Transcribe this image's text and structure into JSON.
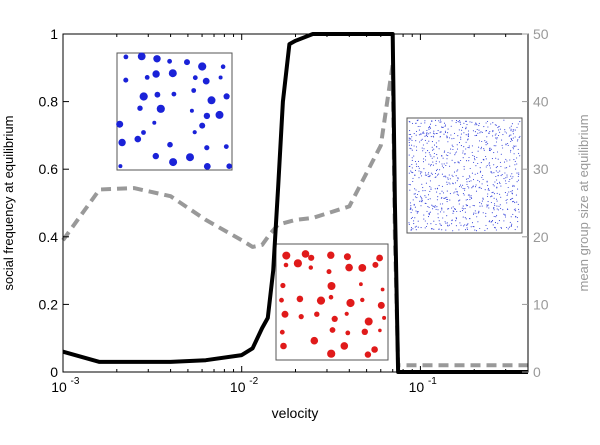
{
  "chart_data": {
    "type": "line",
    "x_scale": "log",
    "xlabel": "velocity",
    "xlim": [
      0.001,
      0.4
    ],
    "x_ticks": [
      {
        "value": 0.001,
        "base": "10",
        "exp": "-3"
      },
      {
        "value": 0.01,
        "base": "10",
        "exp": "-2"
      },
      {
        "value": 0.1,
        "base": "10",
        "exp": "-1"
      }
    ],
    "y_left": {
      "label": "social frequency at equilibrium",
      "lim": [
        0,
        1
      ],
      "ticks": [
        "0",
        "0.2",
        "0.4",
        "0.6",
        "0.8",
        "1"
      ],
      "tick_values": [
        0,
        0.2,
        0.4,
        0.6,
        0.8,
        1
      ]
    },
    "y_right": {
      "label": "mean group size at equilibrium",
      "lim": [
        0,
        50
      ],
      "ticks": [
        "0",
        "10",
        "20",
        "30",
        "40",
        "50"
      ],
      "tick_values": [
        0,
        10,
        20,
        30,
        40,
        50
      ],
      "color": "#999999"
    },
    "grid": false,
    "legend": "none",
    "series": [
      {
        "axis": "left",
        "style": "solid",
        "color": "#000000",
        "x": [
          0.001,
          0.0016,
          0.0025,
          0.004,
          0.0063,
          0.01,
          0.0115,
          0.013,
          0.014,
          0.015,
          0.016,
          0.017,
          0.0185,
          0.02,
          0.025,
          0.03,
          0.05,
          0.07,
          0.072,
          0.075,
          0.1,
          0.2,
          0.4
        ],
        "y": [
          0.06,
          0.03,
          0.03,
          0.03,
          0.035,
          0.05,
          0.07,
          0.13,
          0.16,
          0.3,
          0.55,
          0.8,
          0.97,
          0.98,
          1.0,
          1.0,
          1.0,
          1.0,
          0.5,
          0.0,
          0.0,
          0.0,
          0.0
        ]
      },
      {
        "axis": "right",
        "style": "dashed",
        "color": "#999999",
        "x": [
          0.001,
          0.0016,
          0.0025,
          0.004,
          0.0063,
          0.01,
          0.0115,
          0.013,
          0.0145,
          0.016,
          0.02,
          0.025,
          0.04,
          0.06,
          0.07,
          0.072,
          0.075,
          0.1,
          0.4
        ],
        "y": [
          19.5,
          27.0,
          27.2,
          26.0,
          22.5,
          19.5,
          18.5,
          18.8,
          20.5,
          21.8,
          22.5,
          22.8,
          24.5,
          33.5,
          45.5,
          20.0,
          1.0,
          1.0,
          1.0
        ]
      }
    ],
    "insets": [
      {
        "description_key": "blue-clustered-snapshot",
        "dot_color": "#1a22d8",
        "pattern": "clusters"
      },
      {
        "description_key": "red-clustered-snapshot",
        "dot_color": "#e01a1a",
        "pattern": "clusters"
      },
      {
        "description_key": "blue-dispersed-snapshot",
        "dot_color": "#2b3ad8",
        "pattern": "dispersed"
      }
    ]
  }
}
